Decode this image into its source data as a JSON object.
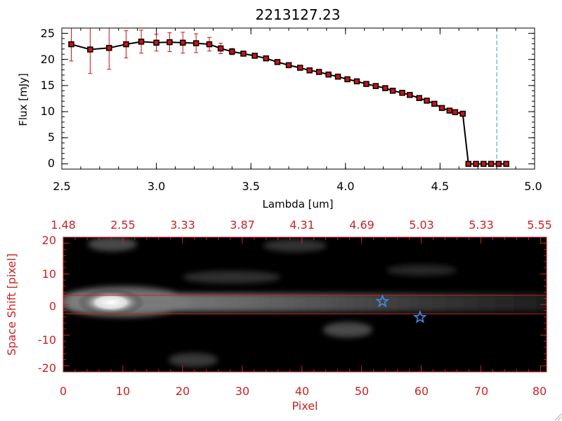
{
  "chart_data": [
    {
      "type": "line",
      "title": "2213127.23",
      "xlabel": "Lambda [um]",
      "ylabel": "Flux [mJy]",
      "xlim": [
        2.5,
        5.0
      ],
      "ylim": [
        -1,
        26
      ],
      "x_ticks": [
        "2.5",
        "3.0",
        "3.5",
        "4.0",
        "4.5",
        "5.0"
      ],
      "x_tick_values": [
        2.5,
        3.0,
        3.5,
        4.0,
        4.5,
        5.0
      ],
      "y_ticks": [
        "0",
        "5",
        "10",
        "15",
        "20",
        "25"
      ],
      "y_tick_values": [
        0,
        5,
        10,
        15,
        20,
        25
      ],
      "reference_line_x": 4.8,
      "colors": {
        "line": "#000000",
        "marker": "#cc1111",
        "errorbar": "#cc1111",
        "reference": "#3399cc",
        "axes": "#000000"
      },
      "series": [
        {
          "x": [
            2.55,
            2.65,
            2.75,
            2.84,
            2.92,
            3.0,
            3.07,
            3.14,
            3.21,
            3.28,
            3.34,
            3.4,
            3.46,
            3.52,
            3.58,
            3.64,
            3.7,
            3.76,
            3.81,
            3.86,
            3.91,
            3.96,
            4.01,
            4.06,
            4.11,
            4.16,
            4.21,
            4.25,
            4.3,
            4.34,
            4.39,
            4.43,
            4.47,
            4.51,
            4.55,
            4.58,
            4.62,
            4.65,
            4.69,
            4.73,
            4.77,
            4.81,
            4.85
          ],
          "y": [
            22.9,
            21.9,
            22.2,
            22.9,
            23.4,
            23.2,
            23.3,
            23.2,
            23.1,
            22.9,
            22.1,
            21.5,
            21.1,
            20.7,
            20.2,
            19.5,
            18.9,
            18.4,
            17.9,
            17.6,
            17.1,
            16.7,
            16.2,
            15.8,
            15.3,
            14.9,
            14.5,
            14.0,
            13.6,
            13.2,
            12.6,
            12.1,
            11.5,
            10.7,
            10.2,
            9.9,
            9.6,
            0,
            0,
            0,
            0,
            0,
            0
          ],
          "yerr": [
            3.2,
            4.6,
            4.1,
            2.6,
            2.2,
            1.6,
            1.8,
            2.0,
            1.8,
            1.3,
            1.0,
            0.6,
            0.4,
            0.3,
            0.3,
            0.3,
            0.3,
            0.3,
            0.2,
            0.2,
            0.2,
            0.2,
            0.2,
            0.2,
            0.2,
            0.2,
            0.2,
            0.2,
            0.2,
            0.2,
            0.2,
            0.2,
            0.2,
            0.2,
            0.2,
            0.2,
            0.2,
            0,
            0,
            0,
            0,
            0,
            0
          ]
        }
      ]
    },
    {
      "type": "heatmap",
      "xlabel": "Pixel",
      "ylabel": "Space Shift [pixel]",
      "xlim": [
        0,
        81
      ],
      "ylim": [
        -22,
        22
      ],
      "x_ticks": [
        "0",
        "10",
        "20",
        "30",
        "40",
        "50",
        "60",
        "70",
        "80"
      ],
      "x_tick_values": [
        0,
        10,
        20,
        30,
        40,
        50,
        60,
        70,
        80
      ],
      "top_ticks": [
        "1.48",
        "2.55",
        "3.33",
        "3.87",
        "4.31",
        "4.69",
        "5.03",
        "5.33",
        "5.55"
      ],
      "y_ticks": [
        "20",
        "10",
        "0",
        "-10",
        "-20"
      ],
      "y_tick_values": [
        20,
        10,
        0,
        -10,
        -20
      ],
      "aperture_lines_y": [
        3,
        -3
      ],
      "stars": [
        {
          "x": 53.5,
          "y": 1.0
        },
        {
          "x": 59.8,
          "y": -4.2
        }
      ],
      "colors": {
        "axes": "#cc2222",
        "aperture": "#cc2222",
        "star": "#3f8fe0",
        "background": "#000000"
      }
    }
  ]
}
